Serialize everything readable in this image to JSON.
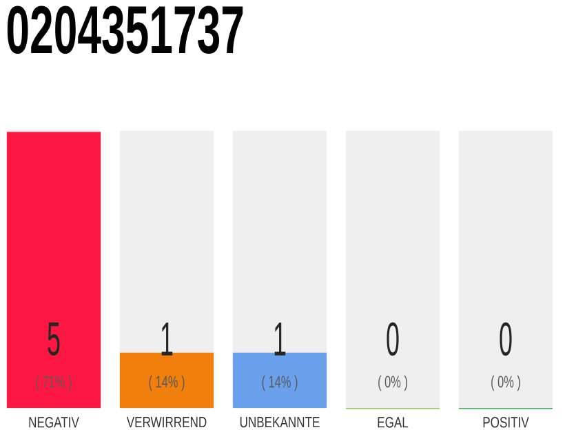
{
  "chart_data": {
    "type": "bar",
    "title": "0204351737",
    "categories": [
      "NEGATIV",
      "VERWIRREND",
      "UNBEKANNTE",
      "EGAL",
      "POSITIV"
    ],
    "stacked": true,
    "series": [
      {
        "colors": [
          "#ff1744",
          "#f07f0c",
          "#6aa0ec",
          "#8bc34a",
          "#22aa44"
        ],
        "values": [
          5,
          1,
          1,
          0,
          0
        ],
        "value_labels": [
          "5",
          "1",
          "1",
          null,
          null
        ]
      },
      {
        "color": "#efefef",
        "values": [
          0,
          4,
          4,
          5,
          5
        ]
      }
    ],
    "annotations": [
      "( 71% )",
      "( 14% )",
      "( 14% )",
      "( 0% )",
      "( 0% )",
      {
        "text": "0",
        "x": "EGAL",
        "y": 0
      },
      {
        "text": "0",
        "x": "POSITIV",
        "y": 0
      }
    ],
    "ylim": [
      0,
      5
    ]
  }
}
